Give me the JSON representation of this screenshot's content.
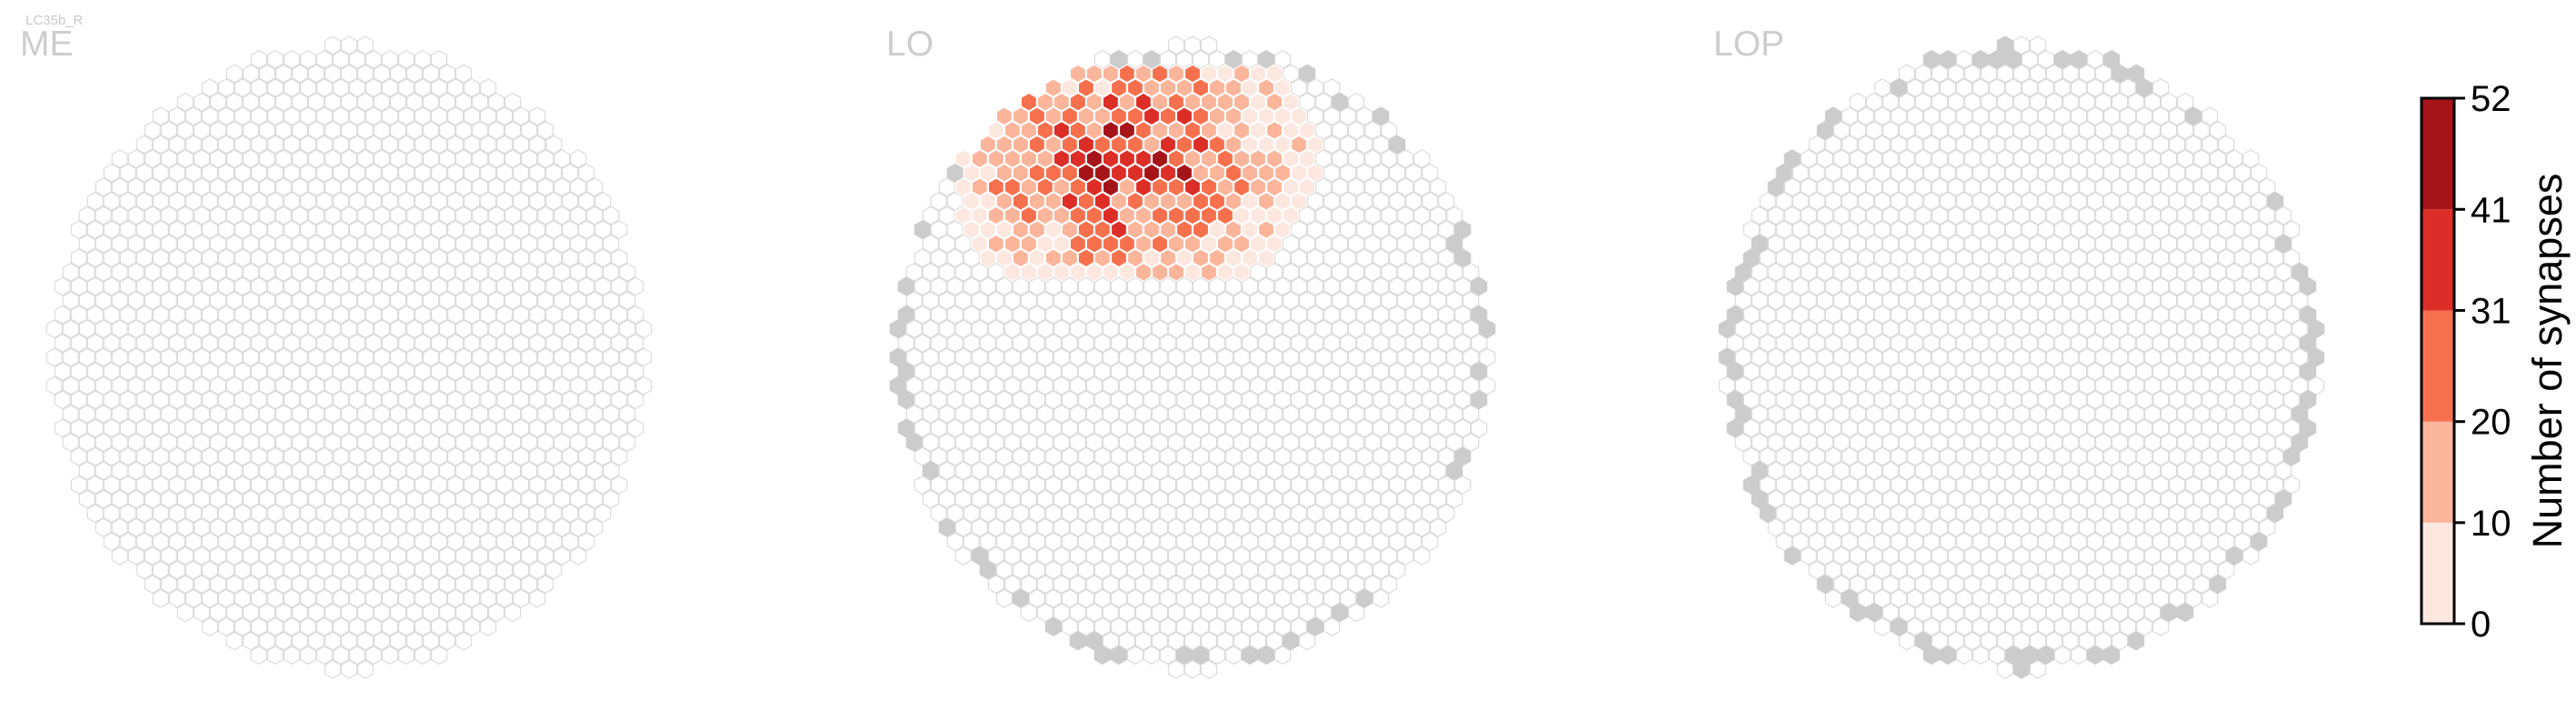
{
  "figure": {
    "neuron_label": "LC35b_R"
  },
  "colors": {
    "hex_edge_empty": "#dcdcdc",
    "hex_fill_empty": "#ffffff",
    "hex_fill_outside": "#cccccc",
    "hex_edge_data": "#ffffff",
    "panel_title": "#cdcdcd"
  },
  "chart_data": {
    "type": "heatmap",
    "description_type": "hexagonal column map",
    "panels": [
      {
        "title": "ME",
        "highlight": "none"
      },
      {
        "title": "LO",
        "highlight": "dorsal-anterior cluster"
      },
      {
        "title": "LOP",
        "highlight": "none"
      }
    ],
    "colorbar": {
      "label": "Number of synapses",
      "range": [
        0,
        52
      ],
      "bins": [
        {
          "min": 0,
          "max": 10,
          "color": "#fde8e0"
        },
        {
          "min": 10,
          "max": 20,
          "color": "#fbb59b"
        },
        {
          "min": 20,
          "max": 31,
          "color": "#f6704e"
        },
        {
          "min": 31,
          "max": 41,
          "color": "#dc2d27"
        },
        {
          "min": 41,
          "max": 52,
          "color": "#a51419"
        }
      ],
      "ticks": [
        "0",
        "10",
        "20",
        "31",
        "41",
        "52"
      ]
    }
  }
}
